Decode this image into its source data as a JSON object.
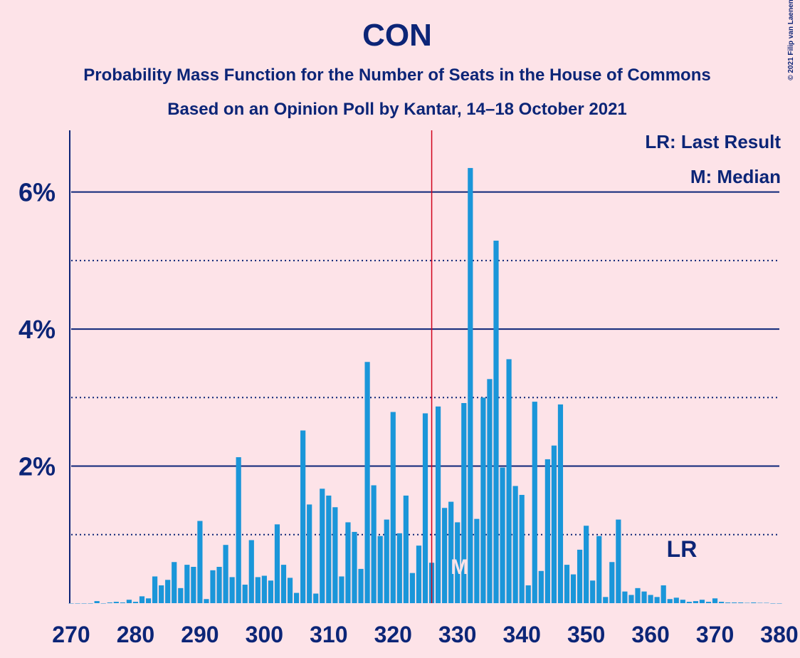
{
  "chart_data": {
    "type": "bar",
    "title": "CON",
    "subtitle": "Probability Mass Function for the Number of Seats in the House of Commons",
    "subtitle2": "Based on an Opinion Poll by Kantar, 14–18 October 2021",
    "copyright": "© 2021 Filip van Laenen",
    "legend_lr": "LR: Last Result",
    "legend_m": "M: Median",
    "lr_label": "LR",
    "median_label": "M",
    "last_result": 326,
    "median": 330,
    "color": "#1a96d9",
    "x": [
      270,
      271,
      272,
      273,
      274,
      275,
      276,
      277,
      278,
      279,
      280,
      281,
      282,
      283,
      284,
      285,
      286,
      287,
      288,
      289,
      290,
      291,
      292,
      293,
      294,
      295,
      296,
      297,
      298,
      299,
      300,
      301,
      302,
      303,
      304,
      305,
      306,
      307,
      308,
      309,
      310,
      311,
      312,
      313,
      314,
      315,
      316,
      317,
      318,
      319,
      320,
      321,
      322,
      323,
      324,
      325,
      326,
      327,
      328,
      329,
      330,
      331,
      332,
      333,
      334,
      335,
      336,
      337,
      338,
      339,
      340,
      341,
      342,
      343,
      344,
      345,
      346,
      347,
      348,
      349,
      350,
      351,
      352,
      353,
      354,
      355,
      356,
      357,
      358,
      359,
      360,
      361,
      362,
      363,
      364,
      365,
      366,
      367,
      368,
      369,
      370,
      371,
      372,
      373,
      374,
      375,
      376,
      377,
      378,
      379,
      380
    ],
    "values": [
      0,
      0,
      0,
      0,
      0.03,
      0,
      0.01,
      0.02,
      0.01,
      0.05,
      0.02,
      0.1,
      0.07,
      0.39,
      0.26,
      0.34,
      0.6,
      0.22,
      0.56,
      0.53,
      1.2,
      0.06,
      0.48,
      0.53,
      0.85,
      0.38,
      2.13,
      0.27,
      0.92,
      0.38,
      0.4,
      0.33,
      1.15,
      0.56,
      0.37,
      0.15,
      2.52,
      1.44,
      0.14,
      1.67,
      1.57,
      1.4,
      0.39,
      1.18,
      1.04,
      0.5,
      3.52,
      1.72,
      0.98,
      1.22,
      2.79,
      1.02,
      1.57,
      0.44,
      0.84,
      2.77,
      0.59,
      2.87,
      1.39,
      1.48,
      1.18,
      2.92,
      6.35,
      1.23,
      3.0,
      3.27,
      5.29,
      1.98,
      3.56,
      1.71,
      1.58,
      0.26,
      2.94,
      0.47,
      2.1,
      2.3,
      2.9,
      0.56,
      0.42,
      0.78,
      1.13,
      0.33,
      0.98,
      0.09,
      0.6,
      1.22,
      0.17,
      0.12,
      0.22,
      0.17,
      0.12,
      0.09,
      0.26,
      0.06,
      0.08,
      0.05,
      0.02,
      0.03,
      0.05,
      0.02,
      0.07,
      0.02,
      0.01,
      0.01,
      0.01,
      0.005,
      0.01,
      0.005,
      0.005,
      0,
      0
    ],
    "xlim": [
      270,
      380
    ],
    "xticks": [
      270,
      280,
      290,
      300,
      310,
      320,
      330,
      340,
      350,
      360,
      370,
      380
    ],
    "ylim": [
      0,
      6.9
    ],
    "yticks": [
      {
        "value": 2,
        "label": "2%"
      },
      {
        "value": 4,
        "label": "4%"
      },
      {
        "value": 6,
        "label": "6%"
      }
    ],
    "minor_yticks": [
      1,
      3,
      5
    ],
    "grid": true
  }
}
